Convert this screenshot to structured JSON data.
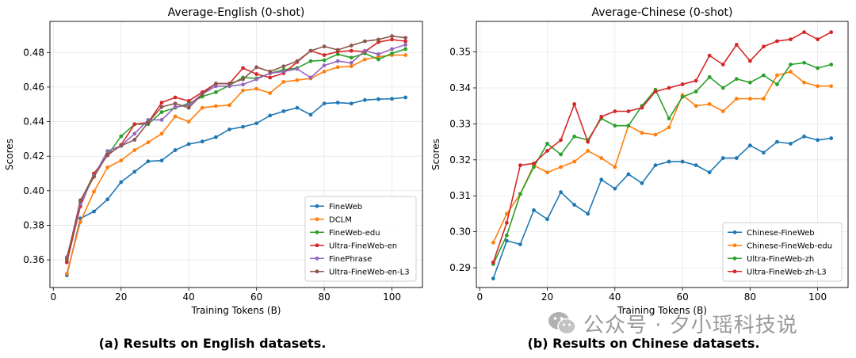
{
  "captions": {
    "left": "(a) Results on English datasets.",
    "right": "(b) Results on Chinese datasets."
  },
  "watermark": {
    "text": "公众号 · 夕小瑶科技说",
    "icon": "wechat-logo-icon"
  },
  "chart_data": [
    {
      "type": "line",
      "title": "Average-English (0-shot)",
      "xlabel": "Training Tokens (B)",
      "ylabel": "Scores",
      "xlim": [
        -1,
        109
      ],
      "ylim": [
        0.344,
        0.498
      ],
      "xticks": [
        0,
        20,
        40,
        60,
        80,
        100
      ],
      "yticks": [
        0.36,
        0.38,
        0.4,
        0.42,
        0.44,
        0.46,
        0.48
      ],
      "ytick_labels": [
        "0.36",
        "0.38",
        "0.40",
        "0.42",
        "0.44",
        "0.46",
        "0.48"
      ],
      "grid": true,
      "legend_position": "lower-right",
      "x": [
        4,
        8,
        12,
        16,
        20,
        24,
        28,
        32,
        36,
        40,
        44,
        48,
        52,
        56,
        60,
        64,
        68,
        72,
        76,
        80,
        84,
        88,
        92,
        96,
        100,
        104
      ],
      "series": [
        {
          "name": "FineWeb",
          "color": "#1f77b4",
          "values": [
            0.351,
            0.384,
            0.388,
            0.395,
            0.405,
            0.411,
            0.417,
            0.4175,
            0.4235,
            0.427,
            0.4285,
            0.431,
            0.4355,
            0.437,
            0.439,
            0.4435,
            0.446,
            0.448,
            0.444,
            0.4505,
            0.451,
            0.4505,
            0.4525,
            0.453,
            0.4532,
            0.454
          ]
        },
        {
          "name": "DCLM",
          "color": "#ff7f0e",
          "values": [
            0.352,
            0.382,
            0.3995,
            0.4135,
            0.4175,
            0.4235,
            0.428,
            0.433,
            0.443,
            0.44,
            0.448,
            0.449,
            0.4495,
            0.458,
            0.459,
            0.4565,
            0.463,
            0.464,
            0.465,
            0.469,
            0.4715,
            0.472,
            0.476,
            0.4775,
            0.4785,
            0.4785
          ]
        },
        {
          "name": "FineWeb-edu",
          "color": "#2ca02c",
          "values": [
            0.359,
            0.394,
            0.4095,
            0.4205,
            0.4315,
            0.4385,
            0.4385,
            0.4455,
            0.448,
            0.4505,
            0.4545,
            0.457,
            0.461,
            0.4655,
            0.465,
            0.468,
            0.47,
            0.471,
            0.475,
            0.4755,
            0.479,
            0.477,
            0.4795,
            0.476,
            0.4795,
            0.482
          ]
        },
        {
          "name": "Ultra-FineWeb-en",
          "color": "#d62728",
          "values": [
            0.3585,
            0.391,
            0.41,
            0.4205,
            0.4265,
            0.4385,
            0.4395,
            0.451,
            0.454,
            0.452,
            0.457,
            0.462,
            0.462,
            0.471,
            0.4675,
            0.4655,
            0.468,
            0.4745,
            0.481,
            0.4785,
            0.4805,
            0.481,
            0.4805,
            0.486,
            0.4875,
            0.4865
          ]
        },
        {
          "name": "FinePhrase",
          "color": "#9467bd",
          "values": [
            0.3615,
            0.3925,
            0.4085,
            0.423,
            0.426,
            0.433,
            0.441,
            0.441,
            0.4485,
            0.4495,
            0.456,
            0.4605,
            0.4605,
            0.4615,
            0.4645,
            0.468,
            0.469,
            0.4705,
            0.4655,
            0.4725,
            0.475,
            0.474,
            0.481,
            0.479,
            0.482,
            0.4845
          ]
        },
        {
          "name": "Ultra-FineWeb-en-L3",
          "color": "#8c564b",
          "values": [
            0.3605,
            0.3945,
            0.408,
            0.421,
            0.426,
            0.4295,
            0.4395,
            0.4485,
            0.4505,
            0.448,
            0.456,
            0.462,
            0.462,
            0.4645,
            0.4715,
            0.469,
            0.472,
            0.475,
            0.481,
            0.4835,
            0.4815,
            0.484,
            0.4865,
            0.4875,
            0.4895,
            0.4885
          ]
        }
      ]
    },
    {
      "type": "line",
      "title": "Average-Chinese (0-shot)",
      "xlabel": "Training Tokens (B)",
      "ylabel": "Scores",
      "xlim": [
        -1,
        109
      ],
      "ylim": [
        0.2845,
        0.3585
      ],
      "xticks": [
        0,
        20,
        40,
        60,
        80,
        100
      ],
      "yticks": [
        0.29,
        0.3,
        0.31,
        0.32,
        0.33,
        0.34,
        0.35
      ],
      "ytick_labels": [
        "0.29",
        "0.30",
        "0.31",
        "0.32",
        "0.33",
        "0.34",
        "0.35"
      ],
      "grid": true,
      "legend_position": "lower-right",
      "x": [
        4,
        8,
        12,
        16,
        20,
        24,
        28,
        32,
        36,
        40,
        44,
        48,
        52,
        56,
        60,
        64,
        68,
        72,
        76,
        80,
        84,
        88,
        92,
        96,
        100,
        104
      ],
      "series": [
        {
          "name": "Chinese-FineWeb",
          "color": "#1f77b4",
          "values": [
            0.287,
            0.2975,
            0.2965,
            0.306,
            0.3035,
            0.311,
            0.3075,
            0.305,
            0.3145,
            0.312,
            0.316,
            0.3135,
            0.3185,
            0.3195,
            0.3195,
            0.3185,
            0.3165,
            0.3205,
            0.3205,
            0.324,
            0.322,
            0.325,
            0.3245,
            0.3265,
            0.3255,
            0.326
          ]
        },
        {
          "name": "Chinese-FineWeb-edu",
          "color": "#ff7f0e",
          "values": [
            0.297,
            0.305,
            0.3105,
            0.3185,
            0.3165,
            0.318,
            0.3195,
            0.3225,
            0.3205,
            0.318,
            0.3295,
            0.3275,
            0.327,
            0.329,
            0.338,
            0.335,
            0.3355,
            0.3335,
            0.337,
            0.337,
            0.337,
            0.3435,
            0.3445,
            0.3415,
            0.3405,
            0.3405
          ]
        },
        {
          "name": "Ultra-FineWeb-zh",
          "color": "#2ca02c",
          "values": [
            0.291,
            0.299,
            0.3105,
            0.318,
            0.3245,
            0.3215,
            0.3265,
            0.3255,
            0.3315,
            0.3295,
            0.3295,
            0.335,
            0.3395,
            0.3315,
            0.3375,
            0.339,
            0.343,
            0.34,
            0.3425,
            0.3415,
            0.3435,
            0.341,
            0.3465,
            0.347,
            0.3455,
            0.3465
          ]
        },
        {
          "name": "Ultra-FineWeb-zh-L3",
          "color": "#d62728",
          "values": [
            0.2915,
            0.3025,
            0.3185,
            0.319,
            0.3225,
            0.3255,
            0.3355,
            0.325,
            0.332,
            0.3335,
            0.3335,
            0.3345,
            0.339,
            0.34,
            0.341,
            0.342,
            0.349,
            0.3465,
            0.352,
            0.3475,
            0.3515,
            0.353,
            0.3535,
            0.3555,
            0.3535,
            0.3555
          ]
        }
      ]
    }
  ]
}
